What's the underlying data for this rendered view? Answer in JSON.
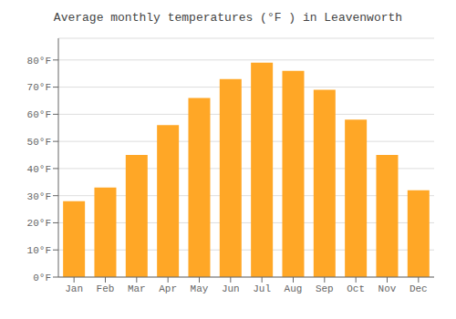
{
  "chart_data": {
    "type": "bar",
    "title": "Average monthly temperatures (°F ) in Leavenworth",
    "categories": [
      "Jan",
      "Feb",
      "Mar",
      "Apr",
      "May",
      "Jun",
      "Jul",
      "Aug",
      "Sep",
      "Oct",
      "Nov",
      "Dec"
    ],
    "values": [
      28,
      33,
      45,
      56,
      66,
      73,
      79,
      76,
      69,
      58,
      45,
      32
    ],
    "color": "#FFA726",
    "ylim": [
      0,
      88
    ],
    "yticks": [
      {
        "value": 0,
        "label": "0°F"
      },
      {
        "value": 10,
        "label": "10°F"
      },
      {
        "value": 20,
        "label": "20°F"
      },
      {
        "value": 30,
        "label": "30°F"
      },
      {
        "value": 40,
        "label": "40°F"
      },
      {
        "value": 50,
        "label": "50°F"
      },
      {
        "value": 60,
        "label": "60°F"
      },
      {
        "value": 70,
        "label": "70°F"
      },
      {
        "value": 80,
        "label": "80°F"
      }
    ],
    "grid": true
  }
}
